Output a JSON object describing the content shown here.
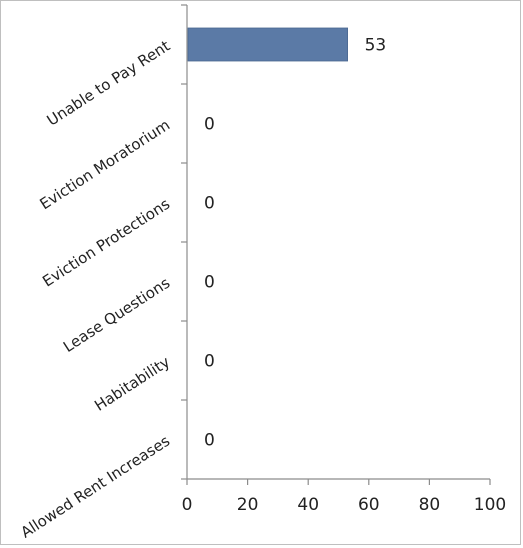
{
  "chart_data": {
    "type": "bar",
    "orientation": "horizontal",
    "categories": [
      "Unable to Pay Rent",
      "Eviction Moratorium",
      "Eviction Protections",
      "Lease Questions",
      "Habitability",
      "Allowed Rent Increases"
    ],
    "values": [
      53,
      0,
      0,
      0,
      0,
      0
    ],
    "data_labels": [
      "53",
      "0",
      "0",
      "0",
      "0",
      "0"
    ],
    "xlim": [
      0,
      100
    ],
    "x_ticks": [
      "0",
      "20",
      "40",
      "60",
      "80",
      "100"
    ],
    "grid": false,
    "legend": "none",
    "bar_color": "#5b7aa6"
  }
}
